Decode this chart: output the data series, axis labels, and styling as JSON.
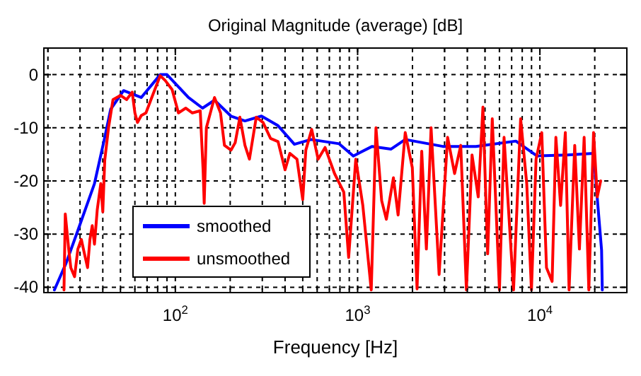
{
  "chart_data": {
    "type": "line",
    "title": "Original Magnitude (average) [dB]",
    "xlabel": "Frequency [Hz]",
    "log": "x",
    "xlim": [
      19,
      30000
    ],
    "ylim": [
      -41,
      5
    ],
    "xticks": [
      {
        "value": 20,
        "label": null
      },
      {
        "value": 30,
        "label": null
      },
      {
        "value": 40,
        "label": null
      },
      {
        "value": 50,
        "label": null
      },
      {
        "value": 60,
        "label": null
      },
      {
        "value": 70,
        "label": null
      },
      {
        "value": 80,
        "label": null
      },
      {
        "value": 90,
        "label": null
      },
      {
        "value": 100,
        "label": "10$^{2}$"
      },
      {
        "value": 200,
        "label": null
      },
      {
        "value": 300,
        "label": null
      },
      {
        "value": 400,
        "label": null
      },
      {
        "value": 500,
        "label": null
      },
      {
        "value": 600,
        "label": null
      },
      {
        "value": 700,
        "label": null
      },
      {
        "value": 800,
        "label": null
      },
      {
        "value": 900,
        "label": null
      },
      {
        "value": 1000,
        "label": "10$^{3}$"
      },
      {
        "value": 2000,
        "label": null
      },
      {
        "value": 3000,
        "label": null
      },
      {
        "value": 4000,
        "label": null
      },
      {
        "value": 5000,
        "label": null
      },
      {
        "value": 6000,
        "label": null
      },
      {
        "value": 7000,
        "label": null
      },
      {
        "value": 8000,
        "label": null
      },
      {
        "value": 9000,
        "label": null
      },
      {
        "value": 10000,
        "label": "10$^{4}$"
      },
      {
        "value": 20000,
        "label": null
      }
    ],
    "yticks": [
      -40,
      -30,
      -20,
      -10,
      0
    ],
    "grid": true,
    "legend": "bottom left",
    "line_style": "solid",
    "marker": "none",
    "series": [
      {
        "name": "smoothed",
        "color": "#0000ff",
        "x": [
          21.7,
          25.2,
          29.2,
          36,
          41,
          44.2,
          52,
          65,
          82.6,
          90,
          118,
          141,
          164,
          202,
          241,
          297,
          366,
          450,
          555,
          792,
          948,
          1202,
          1527,
          1825,
          2933,
          4453,
          7380,
          9640,
          14190,
          19700,
          21800,
          22000
        ],
        "values": [
          -40.5,
          -35.4,
          -29.3,
          -20.5,
          -11.8,
          -6.5,
          -3,
          -4.3,
          0,
          0,
          -4.3,
          -6.3,
          -4.8,
          -7.8,
          -8.7,
          -7.8,
          -9.6,
          -13.1,
          -12.2,
          -13,
          -15.3,
          -13.5,
          -14,
          -12.2,
          -13.5,
          -13.5,
          -12.5,
          -15.3,
          -15.1,
          -14.8,
          -33,
          -40.5
        ]
      },
      {
        "name": "unsmoothed",
        "color": "#ff0000",
        "x": [
          24.5,
          24.9,
          26,
          26.7,
          28,
          29.2,
          30.5,
          31.5,
          33,
          34,
          35,
          36,
          37.3,
          39,
          40,
          41,
          43,
          45.5,
          50,
          54,
          58,
          60,
          62,
          65,
          69,
          75,
          82.6,
          88,
          96,
          104,
          114,
          124,
          137,
          142,
          144,
          148,
          164,
          177,
          186,
          202,
          213,
          226,
          241,
          255,
          278,
          303,
          333,
          366,
          400,
          425,
          465,
          500,
          520,
          560,
          607,
          663,
          747,
          840,
          893,
          977,
          1068,
          1188,
          1261,
          1355,
          1438,
          1572,
          1668,
          1825,
          1996,
          2119,
          2248,
          2384,
          2530,
          2800,
          3117,
          3405,
          3680,
          3953,
          4244,
          4590,
          4870,
          5170,
          5480,
          6000,
          6360,
          6840,
          7170,
          7840,
          8470,
          8990,
          9530,
          10240,
          10870,
          11670,
          12240,
          12990,
          13790,
          14460,
          15530,
          16480,
          17490,
          18560,
          19700,
          20650,
          21540
        ],
        "values": [
          -40.5,
          -26.2,
          -32.8,
          -36.3,
          -38,
          -32.8,
          -31,
          -33.2,
          -36.3,
          -31,
          -28.4,
          -31.9,
          -25.4,
          -20.5,
          -25.8,
          -16.1,
          -10,
          -4.7,
          -3.9,
          -4.7,
          -3.3,
          -7.2,
          -9,
          -7.7,
          -7.2,
          -3.9,
          -0.2,
          -1.1,
          -2.8,
          -7.2,
          -6.3,
          -7.2,
          -6.8,
          -17.9,
          -24.2,
          -10,
          -4.3,
          -7.2,
          -13.3,
          -14.2,
          -12.8,
          -8,
          -13.3,
          -15.9,
          -8,
          -9,
          -12,
          -12.6,
          -17.9,
          -14.8,
          -15.9,
          -23.5,
          -14.2,
          -10.3,
          -15.9,
          -13.7,
          -18.6,
          -22.1,
          -34.4,
          -15.9,
          -24.6,
          -40.5,
          -10,
          -23.7,
          -27.2,
          -19.4,
          -26.4,
          -10.9,
          -17.5,
          -40.3,
          -14.4,
          -32.8,
          -10,
          -37.6,
          -11.8,
          -18.6,
          -13.3,
          -40.5,
          -15.1,
          -23,
          -6.1,
          -33.7,
          -8.3,
          -40.5,
          -11.8,
          -29.3,
          -40.5,
          -8.3,
          -20.5,
          -40.5,
          -15.9,
          -10.9,
          -36.3,
          -38.9,
          -11.8,
          -24.6,
          -10.9,
          -40.5,
          -13.3,
          -32.8,
          -11.8,
          -40.5,
          -10.9,
          -23,
          -20
        ]
      }
    ]
  }
}
